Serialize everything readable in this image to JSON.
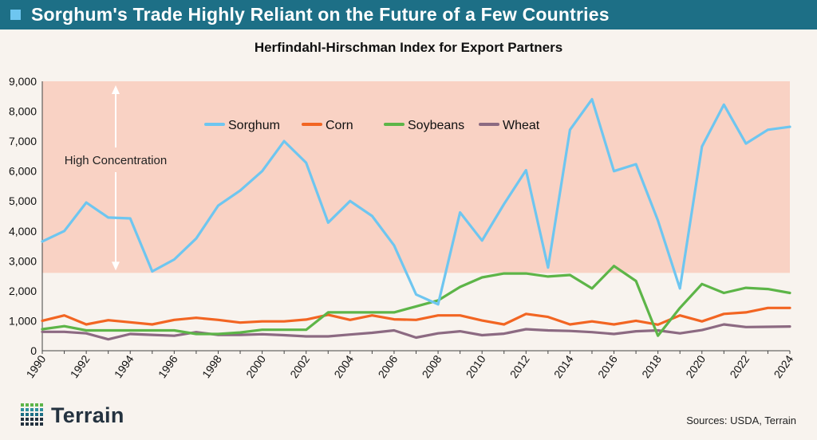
{
  "header": {
    "title": "Sorghum's Trade Highly Reliant on the Future of a Few Countries"
  },
  "brand": {
    "name": "Terrain"
  },
  "footer": {
    "source": "Sources: USDA, Terrain"
  },
  "colors": {
    "header_bg": "#1d6f86",
    "band": "#f9d2c4",
    "sorghum": "#6ec6f0",
    "corn": "#f26522",
    "soybeans": "#5db548",
    "wheat": "#8c6a82"
  },
  "chart_data": {
    "type": "line",
    "title": "Herfindahl-Hirschman Index for Export Partners",
    "xlabel": "",
    "ylabel": "",
    "ylim": [
      0,
      9000
    ],
    "y_ticks": [
      "0",
      "1,000",
      "2,000",
      "3,000",
      "4,000",
      "5,000",
      "6,000",
      "7,000",
      "8,000",
      "9,000"
    ],
    "y_tick_values": [
      0,
      1000,
      2000,
      3000,
      4000,
      5000,
      6000,
      7000,
      8000,
      9000
    ],
    "x_ticks": [
      "1990",
      "1992",
      "1994",
      "1996",
      "1998",
      "2000",
      "2002",
      "2004",
      "2006",
      "2008",
      "2010",
      "2012",
      "2014",
      "2016",
      "2018",
      "2020",
      "2022",
      "2024"
    ],
    "x": [
      1990,
      1991,
      1992,
      1993,
      1994,
      1995,
      1996,
      1997,
      1998,
      1999,
      2000,
      2001,
      2002,
      2003,
      2004,
      2005,
      2006,
      2007,
      2008,
      2009,
      2010,
      2011,
      2012,
      2013,
      2014,
      2015,
      2016,
      2017,
      2018,
      2019,
      2020,
      2021,
      2022,
      2023,
      2024
    ],
    "band": {
      "from": 2600,
      "to": 9000,
      "label": "High Concentration"
    },
    "legend_position": "top-center",
    "grid": false,
    "series": [
      {
        "name": "Sorghum",
        "values": [
          3650,
          4000,
          4950,
          4450,
          4420,
          2650,
          3050,
          3750,
          4850,
          5350,
          6000,
          7000,
          6280,
          4280,
          5000,
          4500,
          3520,
          1880,
          1550,
          4620,
          3680,
          4900,
          6030,
          2780,
          7380,
          8400,
          6000,
          6230,
          4350,
          2080,
          6820,
          8220,
          6920,
          7380,
          7480
        ]
      },
      {
        "name": "Corn",
        "values": [
          1000,
          1180,
          880,
          1020,
          950,
          880,
          1030,
          1100,
          1030,
          940,
          980,
          980,
          1040,
          1200,
          1030,
          1180,
          1050,
          1030,
          1180,
          1180,
          1010,
          880,
          1230,
          1130,
          880,
          980,
          880,
          1000,
          870,
          1180,
          980,
          1230,
          1280,
          1430,
          1430
        ]
      },
      {
        "name": "Soybeans",
        "values": [
          720,
          820,
          680,
          680,
          680,
          680,
          680,
          560,
          560,
          610,
          700,
          700,
          700,
          1280,
          1280,
          1280,
          1280,
          1480,
          1680,
          2130,
          2450,
          2580,
          2580,
          2480,
          2530,
          2080,
          2830,
          2330,
          500,
          1430,
          2230,
          1930,
          2100,
          2060,
          1930
        ]
      },
      {
        "name": "Wheat",
        "values": [
          630,
          630,
          580,
          380,
          560,
          530,
          500,
          620,
          530,
          530,
          550,
          520,
          480,
          480,
          540,
          600,
          680,
          440,
          580,
          650,
          520,
          570,
          720,
          680,
          660,
          620,
          560,
          650,
          680,
          580,
          690,
          880,
          790,
          800,
          810
        ]
      }
    ]
  }
}
